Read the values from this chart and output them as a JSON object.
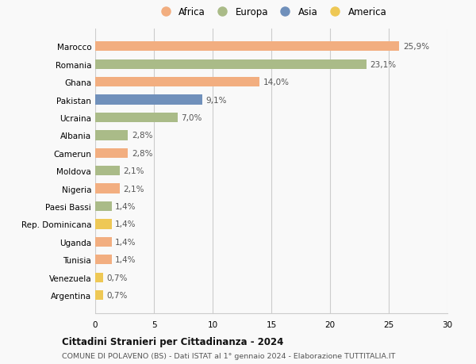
{
  "categories": [
    "Argentina",
    "Venezuela",
    "Tunisia",
    "Uganda",
    "Rep. Dominicana",
    "Paesi Bassi",
    "Nigeria",
    "Moldova",
    "Camerun",
    "Albania",
    "Ucraina",
    "Pakistan",
    "Ghana",
    "Romania",
    "Marocco"
  ],
  "values": [
    0.7,
    0.7,
    1.4,
    1.4,
    1.4,
    1.4,
    2.1,
    2.1,
    2.8,
    2.8,
    7.0,
    9.1,
    14.0,
    23.1,
    25.9
  ],
  "continents": [
    "America",
    "America",
    "Africa",
    "Africa",
    "America",
    "Europa",
    "Africa",
    "Europa",
    "Africa",
    "Europa",
    "Europa",
    "Asia",
    "Africa",
    "Europa",
    "Africa"
  ],
  "colors": {
    "Africa": "#F2AE80",
    "Europa": "#AABB88",
    "Asia": "#7090BB",
    "America": "#EEC855"
  },
  "legend_order": [
    "Africa",
    "Europa",
    "Asia",
    "America"
  ],
  "title1": "Cittadini Stranieri per Cittadinanza - 2024",
  "title2": "COMUNE DI POLAVENO (BS) - Dati ISTAT al 1° gennaio 2024 - Elaborazione TUTTITALIA.IT",
  "xlim": [
    0,
    30
  ],
  "xticks": [
    0,
    5,
    10,
    15,
    20,
    25,
    30
  ],
  "bar_height": 0.55,
  "background_color": "#f9f9f9",
  "grid_color": "#cccccc",
  "label_fontsize": 7.5,
  "tick_fontsize": 7.5,
  "legend_fontsize": 8.5
}
